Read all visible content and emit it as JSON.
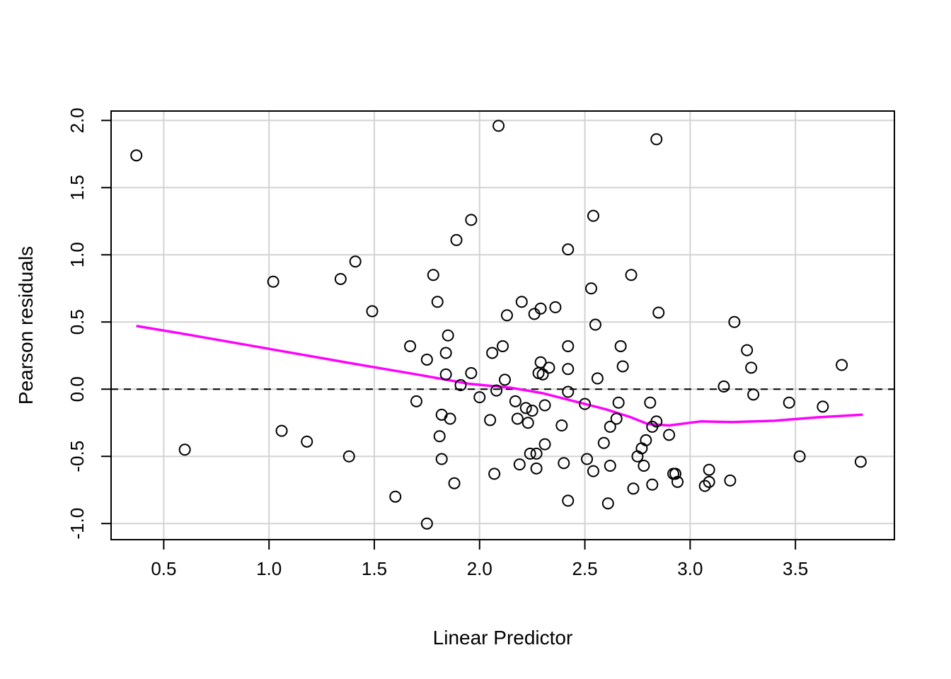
{
  "chart_data": {
    "type": "scatter",
    "title": "",
    "xlabel": "Linear Predictor",
    "ylabel": "Pearson residuals",
    "xlim": [
      0.25,
      3.97
    ],
    "ylim": [
      -1.12,
      2.07
    ],
    "x_ticks": [
      0.5,
      1.0,
      1.5,
      2.0,
      2.5,
      3.0,
      3.5
    ],
    "x_tick_labels": [
      "0.5",
      "1.0",
      "1.5",
      "2.0",
      "2.5",
      "3.0",
      "3.5"
    ],
    "y_ticks": [
      -1.0,
      -0.5,
      0.0,
      0.5,
      1.0,
      1.5,
      2.0
    ],
    "y_tick_labels": [
      "-1.0",
      "-0.5",
      "0.0",
      "0.5",
      "1.0",
      "1.5",
      "2.0"
    ],
    "grid": true,
    "reference_line": {
      "y": 0.0,
      "style": "dashed",
      "color": "#000000"
    },
    "colors": {
      "points": "#000000",
      "smooth": "#ff00ff",
      "grid": "#d3d3d3"
    },
    "points": [
      [
        0.37,
        1.74
      ],
      [
        0.6,
        -0.45
      ],
      [
        1.02,
        0.8
      ],
      [
        1.06,
        -0.31
      ],
      [
        1.18,
        -0.39
      ],
      [
        1.34,
        0.82
      ],
      [
        1.38,
        -0.5
      ],
      [
        1.41,
        0.95
      ],
      [
        1.49,
        0.58
      ],
      [
        1.6,
        -0.8
      ],
      [
        1.67,
        0.32
      ],
      [
        1.7,
        -0.09
      ],
      [
        1.75,
        0.22
      ],
      [
        1.75,
        -1.0
      ],
      [
        1.78,
        0.85
      ],
      [
        1.8,
        0.65
      ],
      [
        1.81,
        -0.35
      ],
      [
        1.82,
        -0.19
      ],
      [
        1.82,
        -0.52
      ],
      [
        1.84,
        0.27
      ],
      [
        1.84,
        0.11
      ],
      [
        1.85,
        0.4
      ],
      [
        1.86,
        -0.22
      ],
      [
        1.88,
        -0.7
      ],
      [
        1.89,
        1.11
      ],
      [
        1.91,
        0.03
      ],
      [
        1.96,
        1.26
      ],
      [
        1.96,
        0.12
      ],
      [
        2.0,
        -0.06
      ],
      [
        2.05,
        -0.23
      ],
      [
        2.06,
        0.27
      ],
      [
        2.07,
        -0.63
      ],
      [
        2.08,
        -0.01
      ],
      [
        2.09,
        1.96
      ],
      [
        2.11,
        0.32
      ],
      [
        2.12,
        0.07
      ],
      [
        2.13,
        0.55
      ],
      [
        2.17,
        -0.09
      ],
      [
        2.18,
        -0.22
      ],
      [
        2.19,
        -0.56
      ],
      [
        2.2,
        0.65
      ],
      [
        2.22,
        -0.14
      ],
      [
        2.23,
        -0.25
      ],
      [
        2.24,
        -0.48
      ],
      [
        2.25,
        -0.16
      ],
      [
        2.26,
        0.56
      ],
      [
        2.27,
        -0.48
      ],
      [
        2.27,
        -0.59
      ],
      [
        2.28,
        0.12
      ],
      [
        2.29,
        0.2
      ],
      [
        2.29,
        0.6
      ],
      [
        2.3,
        0.11
      ],
      [
        2.31,
        -0.41
      ],
      [
        2.31,
        -0.12
      ],
      [
        2.33,
        0.16
      ],
      [
        2.36,
        0.61
      ],
      [
        2.39,
        -0.27
      ],
      [
        2.4,
        -0.55
      ],
      [
        2.42,
        1.04
      ],
      [
        2.42,
        0.32
      ],
      [
        2.42,
        0.15
      ],
      [
        2.42,
        -0.02
      ],
      [
        2.42,
        -0.83
      ],
      [
        2.5,
        -0.11
      ],
      [
        2.51,
        -0.52
      ],
      [
        2.53,
        0.75
      ],
      [
        2.54,
        1.29
      ],
      [
        2.54,
        -0.61
      ],
      [
        2.55,
        0.48
      ],
      [
        2.56,
        0.08
      ],
      [
        2.59,
        -0.4
      ],
      [
        2.61,
        -0.85
      ],
      [
        2.62,
        -0.57
      ],
      [
        2.62,
        -0.28
      ],
      [
        2.65,
        -0.22
      ],
      [
        2.66,
        -0.1
      ],
      [
        2.67,
        0.32
      ],
      [
        2.68,
        0.17
      ],
      [
        2.72,
        0.85
      ],
      [
        2.73,
        -0.74
      ],
      [
        2.75,
        -0.5
      ],
      [
        2.77,
        -0.44
      ],
      [
        2.78,
        -0.57
      ],
      [
        2.79,
        -0.38
      ],
      [
        2.81,
        -0.1
      ],
      [
        2.82,
        -0.28
      ],
      [
        2.82,
        -0.71
      ],
      [
        2.84,
        -0.24
      ],
      [
        2.84,
        1.86
      ],
      [
        2.85,
        0.57
      ],
      [
        2.9,
        -0.34
      ],
      [
        2.92,
        -0.63
      ],
      [
        2.93,
        -0.63
      ],
      [
        2.94,
        -0.69
      ],
      [
        3.07,
        -0.72
      ],
      [
        3.09,
        -0.69
      ],
      [
        3.09,
        -0.6
      ],
      [
        3.16,
        0.02
      ],
      [
        3.19,
        -0.68
      ],
      [
        3.21,
        0.5
      ],
      [
        3.27,
        0.29
      ],
      [
        3.29,
        0.16
      ],
      [
        3.3,
        -0.04
      ],
      [
        3.47,
        -0.1
      ],
      [
        3.52,
        -0.5
      ],
      [
        3.63,
        -0.13
      ],
      [
        3.72,
        0.18
      ],
      [
        3.81,
        -0.54
      ]
    ],
    "smooth_line": [
      [
        0.37,
        0.47
      ],
      [
        0.6,
        0.41
      ],
      [
        1.0,
        0.3
      ],
      [
        1.4,
        0.19
      ],
      [
        1.7,
        0.11
      ],
      [
        1.95,
        0.04
      ],
      [
        2.15,
        0.01
      ],
      [
        2.3,
        -0.03
      ],
      [
        2.45,
        -0.09
      ],
      [
        2.6,
        -0.15
      ],
      [
        2.72,
        -0.21
      ],
      [
        2.8,
        -0.26
      ],
      [
        2.9,
        -0.27
      ],
      [
        3.0,
        -0.25
      ],
      [
        3.05,
        -0.24
      ],
      [
        3.2,
        -0.245
      ],
      [
        3.4,
        -0.235
      ],
      [
        3.6,
        -0.21
      ],
      [
        3.82,
        -0.19
      ]
    ]
  }
}
